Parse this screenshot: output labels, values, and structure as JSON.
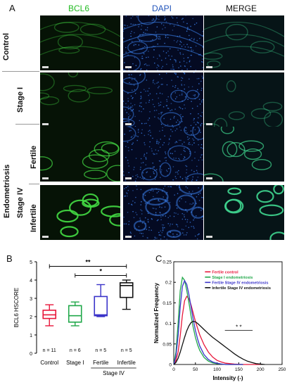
{
  "panel_a": {
    "letter": "A",
    "columns": [
      {
        "label": "BCL6",
        "color": "#22bb22"
      },
      {
        "label": "DAPI",
        "color": "#2255bb"
      },
      {
        "label": "MERGE",
        "color": "#111111"
      }
    ],
    "rows": [
      {
        "label": "Control",
        "tone": "sparse"
      },
      {
        "label": "Stage I",
        "tone": "sparse"
      },
      {
        "label": "Fertile",
        "tone": "medium"
      },
      {
        "label": "Infertile",
        "tone": "strong"
      }
    ],
    "group_labels": {
      "endometriosis": "Endometriosis",
      "stage_iv": "Stage IV"
    }
  },
  "panel_b": {
    "letter": "B",
    "chart_data": {
      "type": "box",
      "ylabel": "BCL6 HSCORE",
      "ylim": [
        0,
        5
      ],
      "yticks": [
        "0",
        "1",
        "2",
        "3",
        "4",
        "5"
      ],
      "categories": [
        "Control",
        "Stage I",
        "Fertile",
        "Infertile"
      ],
      "group_label": "Stage IV",
      "n_labels": [
        "n = 11",
        "n = 6",
        "n = 5",
        "n = 5"
      ],
      "colors": [
        "#e8163a",
        "#21a84a",
        "#3a33c9",
        "#111111"
      ],
      "boxes": [
        {
          "min": 1.5,
          "q1": 1.9,
          "median": 2.1,
          "q3": 2.35,
          "max": 2.65
        },
        {
          "min": 1.5,
          "q1": 1.7,
          "median": 2.05,
          "q3": 2.6,
          "max": 2.8
        },
        {
          "min": 2.0,
          "q1": 2.05,
          "median": 2.1,
          "q3": 3.1,
          "max": 3.75
        },
        {
          "min": 2.4,
          "q1": 3.05,
          "median": 3.7,
          "q3": 3.85,
          "max": 4.0
        }
      ],
      "significance": [
        {
          "label": "**",
          "from": 0,
          "to": 3,
          "y": 4.75
        },
        {
          "label": "*",
          "from": 1,
          "to": 3,
          "y": 4.25
        }
      ]
    }
  },
  "panel_c": {
    "letter": "C",
    "chart_data": {
      "type": "line",
      "xlabel": "Intensity (-)",
      "ylabel": "Normalized Frequency",
      "xlim": [
        0,
        250
      ],
      "ylim": [
        0,
        0.25
      ],
      "xticks": [
        "0",
        "50",
        "100",
        "150",
        "200",
        "250"
      ],
      "yticks": [
        "0",
        "0.05",
        "0.1",
        "0.15",
        "0.2",
        "0.25"
      ],
      "annotation": "* *",
      "series": [
        {
          "name": "Fertile control",
          "color": "#e8163a",
          "x": [
            0,
            5,
            10,
            15,
            20,
            25,
            30,
            35,
            40,
            45,
            50,
            55,
            60,
            70,
            80,
            90,
            100,
            110,
            120,
            130,
            140,
            160,
            180,
            200
          ],
          "y": [
            0,
            0.01,
            0.03,
            0.07,
            0.12,
            0.155,
            0.166,
            0.16,
            0.145,
            0.125,
            0.105,
            0.088,
            0.072,
            0.048,
            0.03,
            0.018,
            0.01,
            0.006,
            0.003,
            0.002,
            0.001,
            0,
            0,
            0
          ]
        },
        {
          "name": "Stage I endometriosis",
          "color": "#21a84a",
          "x": [
            0,
            5,
            10,
            15,
            20,
            25,
            30,
            35,
            40,
            45,
            50,
            55,
            60,
            70,
            80,
            90,
            100,
            110,
            120,
            140,
            160
          ],
          "y": [
            0,
            0.03,
            0.1,
            0.18,
            0.212,
            0.205,
            0.18,
            0.15,
            0.118,
            0.09,
            0.066,
            0.048,
            0.034,
            0.017,
            0.008,
            0.004,
            0.002,
            0.001,
            0,
            0,
            0
          ]
        },
        {
          "name": "Fertile Stage IV endometriosis",
          "color": "#3a33c9",
          "x": [
            0,
            5,
            10,
            15,
            20,
            25,
            30,
            35,
            40,
            45,
            50,
            55,
            60,
            70,
            80,
            90,
            100,
            110,
            120,
            140,
            160
          ],
          "y": [
            0,
            0.02,
            0.07,
            0.14,
            0.19,
            0.204,
            0.195,
            0.17,
            0.14,
            0.11,
            0.083,
            0.062,
            0.045,
            0.024,
            0.012,
            0.006,
            0.003,
            0.001,
            0,
            0,
            0
          ]
        },
        {
          "name": "Infertile Stage IV endometriosis",
          "color": "#111111",
          "x": [
            0,
            5,
            10,
            15,
            20,
            25,
            30,
            35,
            40,
            45,
            50,
            55,
            60,
            70,
            80,
            90,
            100,
            110,
            120,
            130,
            140,
            150,
            160,
            170,
            180,
            190,
            200,
            210
          ],
          "y": [
            0,
            0.005,
            0.015,
            0.03,
            0.048,
            0.066,
            0.082,
            0.094,
            0.102,
            0.105,
            0.104,
            0.1,
            0.095,
            0.085,
            0.075,
            0.066,
            0.058,
            0.05,
            0.042,
            0.034,
            0.026,
            0.019,
            0.013,
            0.008,
            0.005,
            0.002,
            0.001,
            0
          ]
        }
      ]
    }
  }
}
